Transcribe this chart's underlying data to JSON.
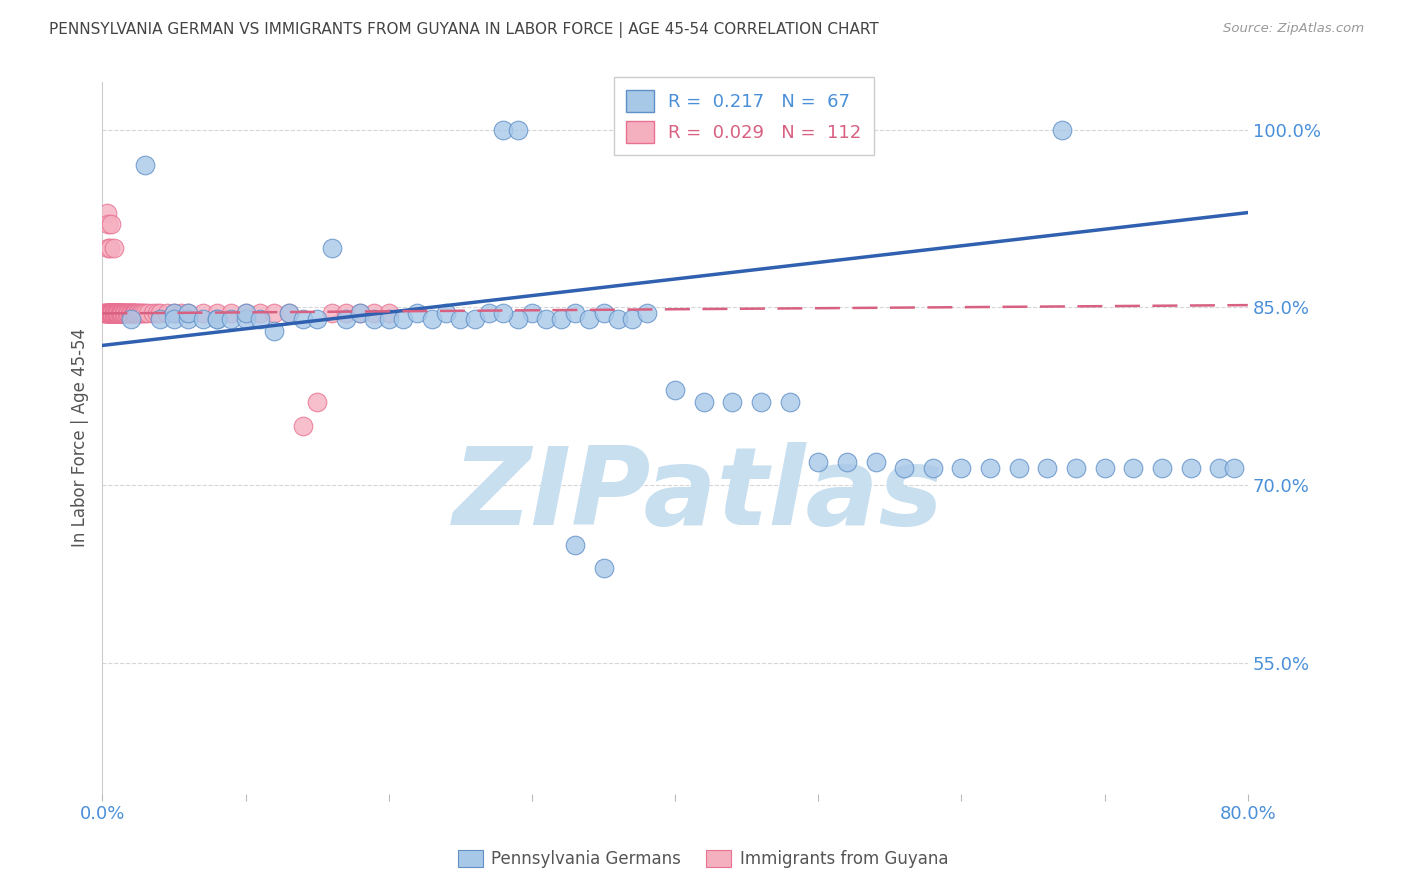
{
  "title": "PENNSYLVANIA GERMAN VS IMMIGRANTS FROM GUYANA IN LABOR FORCE | AGE 45-54 CORRELATION CHART",
  "source": "Source: ZipAtlas.com",
  "ylabel": "In Labor Force | Age 45-54",
  "yticks": [
    0.55,
    0.7,
    0.85,
    1.0
  ],
  "ytick_labels": [
    "55.0%",
    "70.0%",
    "85.0%",
    "100.0%"
  ],
  "xlim": [
    0.0,
    0.8
  ],
  "ylim": [
    0.44,
    1.04
  ],
  "legend_blue_R": "0.217",
  "legend_blue_N": "67",
  "legend_pink_R": "0.029",
  "legend_pink_N": "112",
  "legend_label_blue": "Pennsylvania Germans",
  "legend_label_pink": "Immigrants from Guyana",
  "blue_color": "#A8C8E8",
  "pink_color": "#F5B0C0",
  "blue_edge_color": "#6090C8",
  "pink_edge_color": "#E87090",
  "blue_line_color": "#3060B0",
  "pink_line_color": "#D86080",
  "watermark_text": "ZIPatlas",
  "watermark_color": "#C8DFF0",
  "title_color": "#444444",
  "axis_label_color": "#4A90D9",
  "grid_color": "#BBBBBB",
  "background_color": "#FFFFFF",
  "blue_scatter_x": [
    0.02,
    0.03,
    0.04,
    0.05,
    0.05,
    0.06,
    0.06,
    0.07,
    0.08,
    0.08,
    0.09,
    0.1,
    0.1,
    0.11,
    0.12,
    0.13,
    0.14,
    0.15,
    0.16,
    0.17,
    0.18,
    0.19,
    0.2,
    0.21,
    0.22,
    0.23,
    0.24,
    0.25,
    0.26,
    0.27,
    0.28,
    0.29,
    0.3,
    0.31,
    0.32,
    0.33,
    0.34,
    0.35,
    0.36,
    0.37,
    0.38,
    0.4,
    0.42,
    0.44,
    0.46,
    0.48,
    0.5,
    0.52,
    0.54,
    0.56,
    0.58,
    0.6,
    0.62,
    0.64,
    0.66,
    0.68,
    0.7,
    0.72,
    0.74,
    0.76,
    0.78,
    0.67,
    0.79,
    0.29,
    0.28,
    0.33,
    0.35
  ],
  "blue_scatter_y": [
    0.84,
    0.97,
    0.84,
    0.845,
    0.84,
    0.84,
    0.845,
    0.84,
    0.84,
    0.84,
    0.84,
    0.84,
    0.845,
    0.84,
    0.83,
    0.845,
    0.84,
    0.84,
    0.9,
    0.84,
    0.845,
    0.84,
    0.84,
    0.84,
    0.845,
    0.84,
    0.845,
    0.84,
    0.84,
    0.845,
    1.0,
    1.0,
    0.845,
    0.84,
    0.84,
    0.845,
    0.84,
    0.845,
    0.84,
    0.84,
    0.845,
    0.78,
    0.77,
    0.77,
    0.77,
    0.77,
    0.72,
    0.72,
    0.72,
    0.715,
    0.715,
    0.715,
    0.715,
    0.715,
    0.715,
    0.715,
    0.715,
    0.715,
    0.715,
    0.715,
    0.715,
    1.0,
    0.715,
    0.84,
    0.845,
    0.65,
    0.63
  ],
  "pink_scatter_x": [
    0.001,
    0.002,
    0.002,
    0.003,
    0.003,
    0.003,
    0.003,
    0.004,
    0.004,
    0.004,
    0.004,
    0.004,
    0.005,
    0.005,
    0.005,
    0.005,
    0.005,
    0.005,
    0.006,
    0.006,
    0.006,
    0.006,
    0.006,
    0.006,
    0.006,
    0.007,
    0.007,
    0.007,
    0.007,
    0.007,
    0.007,
    0.007,
    0.007,
    0.008,
    0.008,
    0.008,
    0.008,
    0.008,
    0.008,
    0.009,
    0.009,
    0.009,
    0.009,
    0.009,
    0.009,
    0.01,
    0.01,
    0.01,
    0.01,
    0.01,
    0.01,
    0.01,
    0.011,
    0.011,
    0.011,
    0.011,
    0.011,
    0.012,
    0.012,
    0.012,
    0.013,
    0.013,
    0.013,
    0.014,
    0.014,
    0.015,
    0.015,
    0.015,
    0.016,
    0.016,
    0.017,
    0.017,
    0.018,
    0.018,
    0.019,
    0.019,
    0.02,
    0.02,
    0.021,
    0.021,
    0.022,
    0.022,
    0.023,
    0.023,
    0.024,
    0.025,
    0.026,
    0.027,
    0.028,
    0.03,
    0.032,
    0.035,
    0.038,
    0.04,
    0.045,
    0.05,
    0.055,
    0.06,
    0.07,
    0.08,
    0.09,
    0.1,
    0.11,
    0.12,
    0.13,
    0.14,
    0.15,
    0.16,
    0.17,
    0.18,
    0.19,
    0.2
  ],
  "pink_scatter_y": [
    0.845,
    0.845,
    0.845,
    0.845,
    0.845,
    0.845,
    0.93,
    0.845,
    0.845,
    0.92,
    0.845,
    0.9,
    0.845,
    0.845,
    0.845,
    0.845,
    0.9,
    0.845,
    0.845,
    0.845,
    0.845,
    0.845,
    0.845,
    0.845,
    0.92,
    0.845,
    0.845,
    0.845,
    0.845,
    0.845,
    0.845,
    0.845,
    0.845,
    0.845,
    0.845,
    0.845,
    0.845,
    0.845,
    0.9,
    0.845,
    0.845,
    0.845,
    0.845,
    0.845,
    0.845,
    0.845,
    0.845,
    0.845,
    0.845,
    0.845,
    0.845,
    0.845,
    0.845,
    0.845,
    0.845,
    0.845,
    0.845,
    0.845,
    0.845,
    0.845,
    0.845,
    0.845,
    0.845,
    0.845,
    0.845,
    0.845,
    0.845,
    0.845,
    0.845,
    0.845,
    0.845,
    0.845,
    0.845,
    0.845,
    0.845,
    0.845,
    0.845,
    0.845,
    0.845,
    0.845,
    0.845,
    0.845,
    0.845,
    0.845,
    0.845,
    0.845,
    0.845,
    0.845,
    0.845,
    0.845,
    0.845,
    0.845,
    0.845,
    0.845,
    0.845,
    0.845,
    0.845,
    0.845,
    0.845,
    0.845,
    0.845,
    0.845,
    0.845,
    0.845,
    0.845,
    0.75,
    0.77,
    0.845,
    0.845,
    0.845,
    0.845,
    0.845
  ],
  "blue_trend_x": [
    0.0,
    0.8
  ],
  "blue_trend_y": [
    0.818,
    0.93
  ],
  "pink_trend_x": [
    0.0,
    0.8
  ],
  "pink_trend_y": [
    0.845,
    0.852
  ]
}
